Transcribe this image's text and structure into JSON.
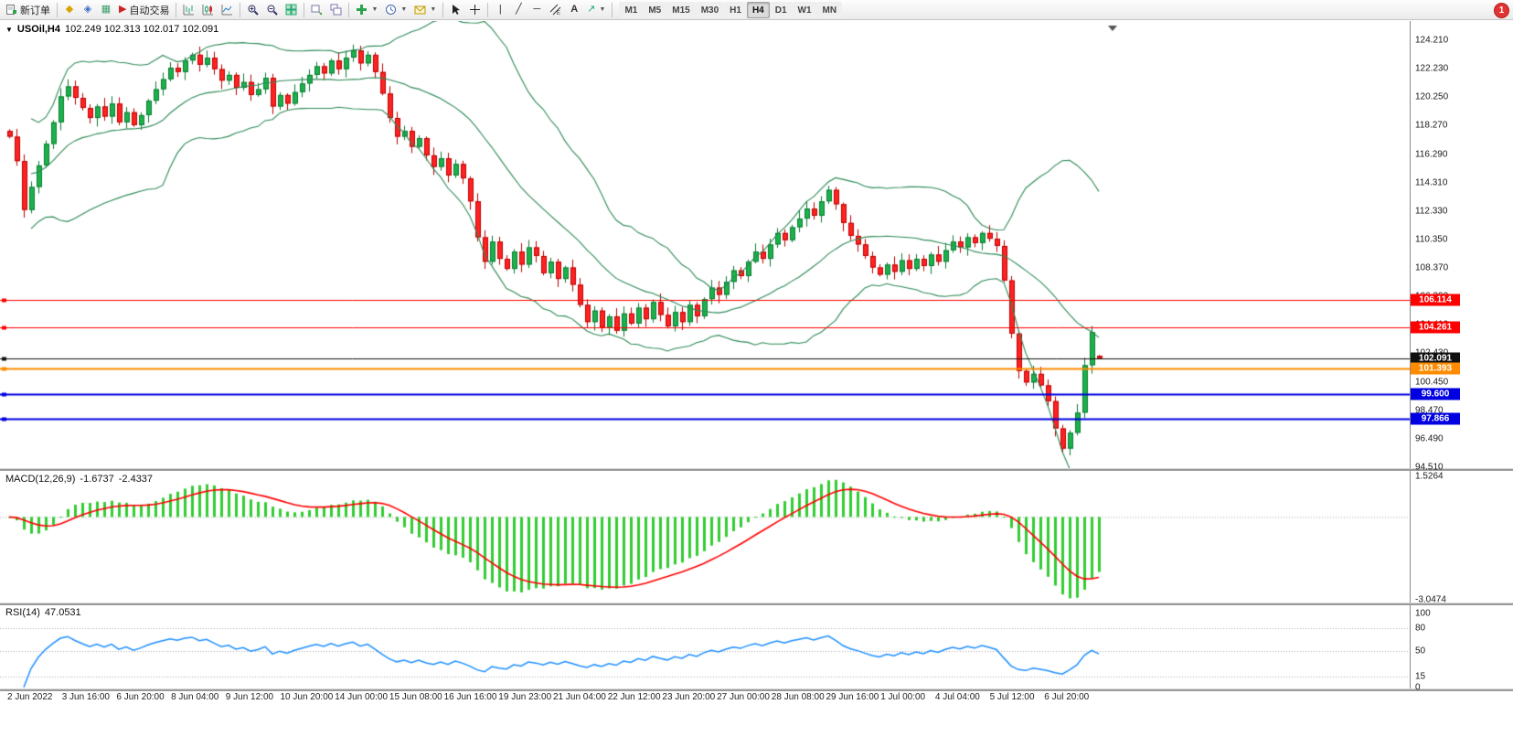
{
  "window": {
    "notification_count": "1"
  },
  "toolbar": {
    "new_order_label": "新订单",
    "autotrading_label": "自动交易",
    "timeframes": [
      "M1",
      "M5",
      "M15",
      "M30",
      "H1",
      "H4",
      "D1",
      "W1",
      "MN"
    ],
    "active_timeframe": "H4"
  },
  "chart": {
    "title_symbol": "USOil,H4",
    "title_ohlc": "102.249 102.313 102.017 102.091",
    "price_axis_labels": [
      "124.210",
      "122.230",
      "120.250",
      "118.270",
      "116.290",
      "114.310",
      "112.330",
      "110.350",
      "108.370",
      "106.390",
      "104.410",
      "102.430",
      "100.450",
      "98.470",
      "96.490",
      "94.510"
    ],
    "price_axis": {
      "top_value": 124.21,
      "step": 1.98
    },
    "hlines": [
      {
        "value": 106.114,
        "label": "106.114",
        "color": "#ff0000",
        "line_width": 1
      },
      {
        "value": 104.261,
        "label": "104.261",
        "color": "#ff0000",
        "line_width": 1
      },
      {
        "value": 102.091,
        "label": "102.091",
        "color": "#111111",
        "line_width": 1
      },
      {
        "value": 101.393,
        "label": "101.393",
        "color": "#ff8c00",
        "line_width": 2
      },
      {
        "value": 99.6,
        "label": "99.600",
        "color": "#0000e0",
        "line_width": 2
      },
      {
        "value": 97.866,
        "label": "97.866",
        "color": "#0000e0",
        "line_width": 2
      }
    ]
  },
  "macd": {
    "label": "MACD(12,26,9)",
    "value_main": "-1.6737",
    "value_signal": "-2.4337",
    "axis_max": "1.5264",
    "axis_min": "-3.0474"
  },
  "rsi": {
    "label": "RSI(14)",
    "value": "47.0531",
    "axis_labels": [
      "100",
      "80",
      "50",
      "15",
      "0"
    ],
    "axis_values": [
      100,
      80,
      50,
      15,
      0
    ],
    "levels": [
      80,
      50,
      15
    ]
  },
  "chart_data": {
    "type": "candlestick",
    "symbol": "USOil",
    "timeframe": "H4",
    "title": "USOil,H4 102.249 102.313 102.017 102.091",
    "ylim": [
      94.51,
      124.21
    ],
    "x_labels": [
      "2 Jun 2022",
      "3 Jun 16:00",
      "6 Jun 20:00",
      "8 Jun 04:00",
      "9 Jun 12:00",
      "10 Jun 20:00",
      "14 Jun 00:00",
      "15 Jun 08:00",
      "16 Jun 16:00",
      "19 Jun 23:00",
      "21 Jun 04:00",
      "22 Jun 12:00",
      "23 Jun 20:00",
      "27 Jun 00:00",
      "28 Jun 08:00",
      "29 Jun 16:00",
      "1 Jul 00:00",
      "4 Jul 04:00",
      "5 Jul 12:00",
      "6 Jul 20:00"
    ],
    "closes": [
      117.5,
      115.8,
      112.4,
      114,
      115.5,
      117,
      118.5,
      120.3,
      121,
      120.2,
      119.5,
      118.8,
      119.6,
      118.9,
      119.8,
      118.5,
      119.2,
      118.3,
      119,
      120,
      120.8,
      121.5,
      122.3,
      122,
      122.8,
      123.2,
      122.5,
      123,
      122.2,
      121.4,
      121.8,
      120.9,
      121.3,
      120.4,
      120.8,
      121.6,
      119.6,
      120.4,
      119.8,
      120.6,
      121.2,
      121.8,
      122.4,
      121.9,
      122.8,
      122.2,
      123,
      123.5,
      122.6,
      123.2,
      122,
      120.5,
      118.8,
      117.5,
      117.9,
      116.8,
      117.4,
      116.2,
      115.4,
      116,
      114.8,
      115.6,
      114.6,
      113,
      110.5,
      108.8,
      110.2,
      109,
      108.3,
      109.5,
      108.6,
      109.8,
      109.2,
      108,
      108.8,
      107.6,
      108.4,
      107.2,
      105.8,
      104.6,
      105.4,
      104.2,
      105,
      104,
      105.2,
      104.5,
      105.6,
      104.8,
      106,
      105.1,
      104.3,
      105.3,
      104.6,
      105.8,
      105,
      106.2,
      107,
      106.5,
      107.4,
      108.2,
      107.8,
      108.8,
      109.5,
      109,
      110,
      110.8,
      110.3,
      111.2,
      111.8,
      112.5,
      112,
      113,
      113.8,
      112.8,
      111.5,
      110.6,
      110,
      109.2,
      108.4,
      107.9,
      108.6,
      108.1,
      108.9,
      108.3,
      109,
      108.5,
      109.3,
      108.8,
      109.6,
      110.2,
      109.8,
      110.5,
      110.1,
      110.8,
      110.4,
      109.9,
      107.5,
      103.8,
      101.2,
      100.4,
      101,
      100.2,
      99.1,
      97.2,
      95.8,
      96.9,
      98.3,
      101.6,
      103.9,
      102.091
    ],
    "last_ohlc": {
      "open": 102.249,
      "high": 102.313,
      "low": 102.017,
      "close": 102.091
    },
    "indicators": {
      "bollinger": {
        "period": 20,
        "deviation": 2
      },
      "macd": {
        "fast": 12,
        "slow": 26,
        "signal": 9,
        "main": -1.6737,
        "signal_value": -2.4337,
        "scale_max": 1.5264,
        "scale_min": -3.0474
      },
      "rsi": {
        "period": 14,
        "current": 47.0531
      }
    },
    "colors": {
      "up": "#1cb24b",
      "up_border": "#0b7a33",
      "down": "#ff2222",
      "down_border": "#bb0000",
      "bollinger": "#2e8b57",
      "macd_hist": "#32cd32",
      "macd_signal": "#ff0000",
      "rsi_line": "#1e90ff",
      "axis_text": "#1a1a1a"
    }
  }
}
